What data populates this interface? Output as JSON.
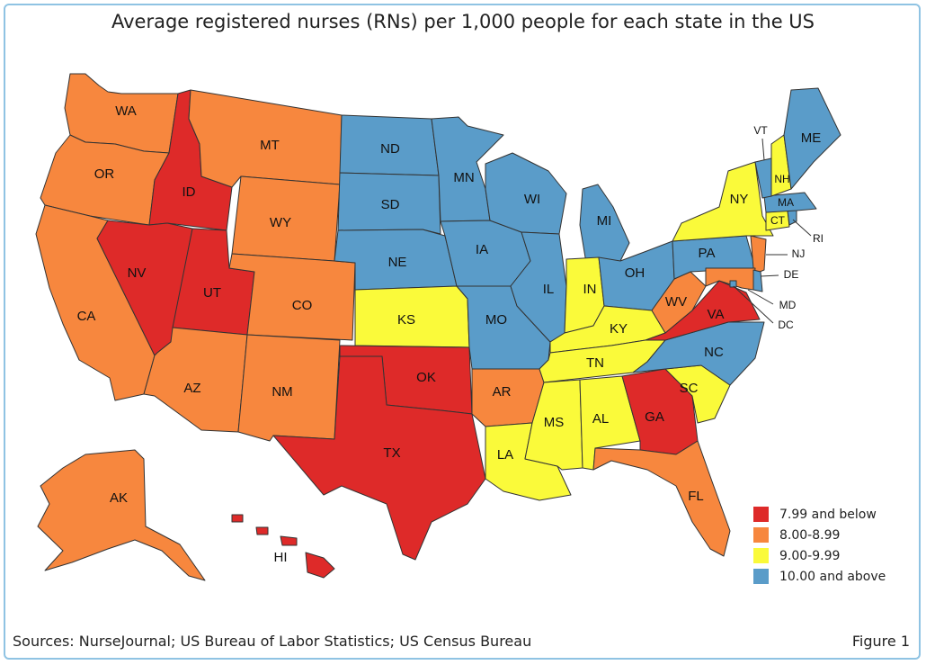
{
  "title": "Average registered nurses (RNs) per 1,000 people for each state in the US",
  "source": "Sources: NurseJournal; US Bureau of Labor Statistics; US Census Bureau",
  "figure_label": "Figure 1",
  "colors": {
    "low": "#de2a29",
    "mid_low": "#f7873e",
    "mid_high": "#fafa3a",
    "high": "#5a9cc9",
    "border": "#333333"
  },
  "legend": [
    {
      "label": "7.99 and below",
      "category": "low"
    },
    {
      "label": "8.00-8.99",
      "category": "mid_low"
    },
    {
      "label": "9.00-9.99",
      "category": "mid_high"
    },
    {
      "label": "10.00 and above",
      "category": "high"
    }
  ],
  "states": {
    "WA": "mid_low",
    "OR": "mid_low",
    "CA": "mid_low",
    "ID": "low",
    "NV": "low",
    "UT": "low",
    "AZ": "mid_low",
    "MT": "mid_low",
    "WY": "mid_low",
    "CO": "mid_low",
    "NM": "mid_low",
    "ND": "high",
    "SD": "high",
    "NE": "high",
    "KS": "mid_high",
    "OK": "low",
    "TX": "low",
    "MN": "high",
    "IA": "high",
    "MO": "high",
    "AR": "mid_low",
    "LA": "mid_high",
    "WI": "high",
    "IL": "high",
    "MI": "high",
    "IN": "mid_high",
    "OH": "high",
    "KY": "mid_high",
    "TN": "mid_high",
    "MS": "mid_high",
    "AL": "mid_high",
    "GA": "low",
    "FL": "mid_low",
    "SC": "mid_high",
    "NC": "high",
    "VA": "low",
    "WV": "mid_low",
    "PA": "high",
    "NY": "mid_high",
    "NJ": "mid_low",
    "DE": "high",
    "MD": "mid_low",
    "DC": "high",
    "CT": "mid_high",
    "RI": "high",
    "MA": "high",
    "VT": "high",
    "NH": "mid_high",
    "ME": "high",
    "AK": "mid_low",
    "HI": "low"
  },
  "labels": {
    "WA": "WA",
    "OR": "OR",
    "CA": "CA",
    "ID": "ID",
    "NV": "NV",
    "UT": "UT",
    "AZ": "AZ",
    "MT": "MT",
    "WY": "WY",
    "CO": "CO",
    "NM": "NM",
    "ND": "ND",
    "SD": "SD",
    "NE": "NE",
    "KS": "KS",
    "OK": "OK",
    "TX": "TX",
    "MN": "MN",
    "IA": "IA",
    "MO": "MO",
    "AR": "AR",
    "LA": "LA",
    "WI": "WI",
    "IL": "IL",
    "MI": "MI",
    "IN": "IN",
    "OH": "OH",
    "KY": "KY",
    "TN": "TN",
    "MS": "MS",
    "AL": "AL",
    "GA": "GA",
    "FL": "FL",
    "SC": "SC",
    "NC": "NC",
    "VA": "VA",
    "WV": "WV",
    "PA": "PA",
    "NY": "NY",
    "NJ": "NJ",
    "DE": "DE",
    "MD": "MD",
    "DC": "DC",
    "CT": "CT",
    "RI": "RI",
    "MA": "MA",
    "VT": "VT",
    "NH": "NH",
    "ME": "ME",
    "AK": "AK",
    "HI": "HI"
  }
}
